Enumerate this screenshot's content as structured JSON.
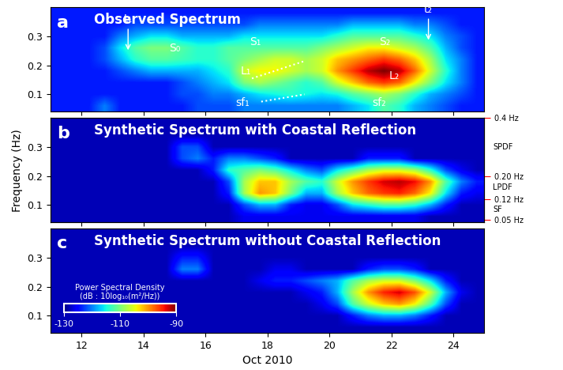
{
  "chart_data": [
    {
      "type": "heatmap",
      "label": "a",
      "title": "Observed Spectrum",
      "xlim": [
        11,
        25
      ],
      "ylim": [
        0.04,
        0.4
      ],
      "xticks": [
        12,
        14,
        16,
        18,
        20,
        22,
        24
      ],
      "yticks": [
        0.1,
        0.2,
        0.3
      ],
      "tick_labels": "y",
      "color_range": [
        -130,
        -90
      ],
      "cells": [
        [
          -124,
          -124,
          -124,
          -120,
          -124,
          -124,
          -124,
          -124,
          -124,
          -122,
          -122,
          -122,
          -120,
          -120,
          -120,
          -120,
          -120,
          -120,
          -120,
          -118,
          -116,
          -112,
          -114,
          -118,
          -120,
          -122,
          -124,
          -124
        ],
        [
          -124,
          -124,
          -124,
          -124,
          -124,
          -124,
          -124,
          -124,
          -122,
          -122,
          -120,
          -120,
          -118,
          -116,
          -115,
          -114,
          -115,
          -116,
          -115,
          -112,
          -110,
          -108,
          -110,
          -114,
          -118,
          -120,
          -122,
          -124
        ],
        [
          -124,
          -124,
          -124,
          -124,
          -124,
          -124,
          -124,
          -124,
          -122,
          -120,
          -118,
          -116,
          -110,
          -108,
          -110,
          -112,
          -114,
          -112,
          -106,
          -102,
          -98,
          -96,
          -98,
          -104,
          -110,
          -116,
          -120,
          -124
        ],
        [
          -124,
          -124,
          -124,
          -124,
          -122,
          -120,
          -118,
          -118,
          -118,
          -118,
          -116,
          -114,
          -106,
          -104,
          -104,
          -106,
          -108,
          -106,
          -100,
          -96,
          -92,
          -90,
          -92,
          -98,
          -106,
          -114,
          -120,
          -124
        ],
        [
          -124,
          -124,
          -124,
          -122,
          -118,
          -114,
          -112,
          -112,
          -113,
          -114,
          -114,
          -112,
          -110,
          -108,
          -106,
          -106,
          -108,
          -106,
          -102,
          -100,
          -98,
          -96,
          -98,
          -102,
          -108,
          -116,
          -120,
          -124
        ],
        [
          -124,
          -124,
          -124,
          -122,
          -116,
          -112,
          -110,
          -110,
          -112,
          -114,
          -114,
          -112,
          -112,
          -112,
          -112,
          -112,
          -112,
          -110,
          -108,
          -106,
          -104,
          -104,
          -106,
          -108,
          -112,
          -118,
          -122,
          -124
        ],
        [
          -124,
          -124,
          -124,
          -124,
          -120,
          -118,
          -116,
          -116,
          -118,
          -118,
          -118,
          -118,
          -116,
          -116,
          -116,
          -116,
          -116,
          -116,
          -114,
          -112,
          -112,
          -112,
          -112,
          -114,
          -116,
          -120,
          -122,
          -124
        ],
        [
          -124,
          -124,
          -124,
          -124,
          -124,
          -122,
          -122,
          -122,
          -122,
          -122,
          -122,
          -122,
          -122,
          -120,
          -120,
          -120,
          -120,
          -120,
          -120,
          -118,
          -118,
          -118,
          -118,
          -120,
          -120,
          -122,
          -124,
          -124
        ],
        [
          -124,
          -124,
          -124,
          -124,
          -124,
          -124,
          -124,
          -124,
          -124,
          -124,
          -124,
          -124,
          -124,
          -124,
          -124,
          -124,
          -124,
          -124,
          -124,
          -124,
          -124,
          -124,
          -124,
          -124,
          -124,
          -124,
          -124,
          -124
        ]
      ],
      "annotations": [
        {
          "text": "t₁",
          "x": 13.5,
          "y": 0.34,
          "xy": [
            13.5,
            0.245
          ]
        },
        {
          "text": "t₂",
          "x": 23.2,
          "y": 0.375,
          "xy": [
            23.2,
            0.28
          ]
        },
        {
          "text": "S₀",
          "x": 15.0,
          "y": 0.26
        },
        {
          "text": "S₁",
          "x": 17.6,
          "y": 0.28
        },
        {
          "text": "S₂",
          "x": 21.8,
          "y": 0.28
        },
        {
          "text": "L₁",
          "x": 17.3,
          "y": 0.18
        },
        {
          "text": "L₂",
          "x": 22.1,
          "y": 0.165
        },
        {
          "text": "sf₁",
          "x": 17.2,
          "y": 0.07
        },
        {
          "text": "sf₂",
          "x": 21.6,
          "y": 0.07
        }
      ],
      "lines": [
        {
          "x": [
            17.5,
            19.2
          ],
          "y": [
            0.155,
            0.215
          ]
        },
        {
          "x": [
            17.8,
            19.2
          ],
          "y": [
            0.075,
            0.1
          ]
        }
      ]
    },
    {
      "type": "heatmap",
      "label": "b",
      "title": "Synthetic Spectrum with Coastal Reflection",
      "xlim": [
        11,
        25
      ],
      "ylim": [
        0.04,
        0.4
      ],
      "xticks": [
        12,
        14,
        16,
        18,
        20,
        22,
        24
      ],
      "yticks": [
        0.1,
        0.2,
        0.3
      ],
      "ylabel": "Frequency (Hz)",
      "tick_labels": "y",
      "color_range": [
        -130,
        -90
      ],
      "y2ticks": [
        {
          "value": 0.4,
          "label": "0.4 Hz"
        },
        {
          "value": 0.2,
          "label": "0.20 Hz"
        },
        {
          "value": 0.12,
          "label": "0.12 Hz"
        },
        {
          "value": 0.05,
          "label": "0.05 Hz"
        }
      ],
      "side_labels": [
        {
          "text": "SPDF",
          "y": 0.3
        },
        {
          "text": "LPDF",
          "y": 0.16
        },
        {
          "text": "SF",
          "y": 0.085
        }
      ],
      "cells": [
        [
          -128,
          -128,
          -128,
          -128,
          -128,
          -128,
          -128,
          -128,
          -128,
          -128,
          -128,
          -128,
          -126,
          -126,
          -126,
          -126,
          -126,
          -126,
          -126,
          -126,
          -126,
          -126,
          -126,
          -126,
          -128,
          -128,
          -128,
          -128
        ],
        [
          -128,
          -128,
          -128,
          -128,
          -128,
          -128,
          -128,
          -128,
          -128,
          -128,
          -128,
          -128,
          -122,
          -118,
          -118,
          -124,
          -126,
          -126,
          -122,
          -116,
          -114,
          -112,
          -112,
          -114,
          -118,
          -124,
          -128,
          -128
        ],
        [
          -128,
          -128,
          -128,
          -128,
          -128,
          -128,
          -128,
          -128,
          -128,
          -128,
          -128,
          -124,
          -108,
          -100,
          -102,
          -110,
          -118,
          -118,
          -108,
          -102,
          -98,
          -96,
          -95,
          -98,
          -104,
          -116,
          -124,
          -126
        ],
        [
          -128,
          -128,
          -128,
          -128,
          -128,
          -128,
          -128,
          -128,
          -128,
          -128,
          -128,
          -122,
          -108,
          -102,
          -102,
          -108,
          -112,
          -114,
          -106,
          -100,
          -96,
          -93,
          -92,
          -94,
          -100,
          -112,
          -120,
          -124
        ],
        [
          -128,
          -128,
          -128,
          -128,
          -128,
          -128,
          -128,
          -128,
          -128,
          -128,
          -124,
          -114,
          -112,
          -110,
          -112,
          -116,
          -120,
          -122,
          -116,
          -112,
          -108,
          -106,
          -106,
          -108,
          -114,
          -122,
          -126,
          -128
        ],
        [
          -128,
          -128,
          -128,
          -128,
          -128,
          -128,
          -128,
          -128,
          -122,
          -120,
          -124,
          -120,
          -120,
          -122,
          -124,
          -128,
          -128,
          -128,
          -128,
          -128,
          -124,
          -124,
          -124,
          -128,
          -128,
          -128,
          -128,
          -128
        ],
        [
          -128,
          -128,
          -128,
          -128,
          -128,
          -128,
          -128,
          -128,
          -122,
          -122,
          -128,
          -128,
          -128,
          -128,
          -128,
          -128,
          -128,
          -128,
          -128,
          -128,
          -128,
          -128,
          -128,
          -128,
          -128,
          -128,
          -128,
          -128
        ],
        [
          -128,
          -128,
          -128,
          -128,
          -128,
          -128,
          -128,
          -128,
          -128,
          -128,
          -128,
          -128,
          -128,
          -128,
          -128,
          -128,
          -128,
          -128,
          -128,
          -128,
          -128,
          -128,
          -128,
          -128,
          -128,
          -128,
          -128,
          -128
        ],
        [
          -128,
          -128,
          -128,
          -128,
          -128,
          -128,
          -128,
          -128,
          -128,
          -128,
          -128,
          -128,
          -128,
          -128,
          -128,
          -128,
          -128,
          -128,
          -128,
          -128,
          -128,
          -128,
          -128,
          -128,
          -128,
          -128,
          -128,
          -128
        ]
      ]
    },
    {
      "type": "heatmap",
      "label": "c",
      "title": "Synthetic Spectrum without Coastal Reflection",
      "xlim": [
        11,
        25
      ],
      "ylim": [
        0.04,
        0.4
      ],
      "xticks": [
        12,
        14,
        16,
        18,
        20,
        22,
        24
      ],
      "yticks": [
        0.1,
        0.2,
        0.3
      ],
      "xlabel": "Oct 2010",
      "color_range": [
        -130,
        -90
      ],
      "colorbar": {
        "label": "Power Spectral Density\n(dB : 10log₁₀(m²/Hz))",
        "ticks": [
          -130,
          -110,
          -90
        ]
      },
      "cells": [
        [
          -128,
          -128,
          -128,
          -128,
          -128,
          -128,
          -128,
          -128,
          -128,
          -128,
          -128,
          -128,
          -128,
          -128,
          -128,
          -128,
          -128,
          -128,
          -128,
          -128,
          -128,
          -128,
          -128,
          -128,
          -128,
          -128,
          -128,
          -128
        ],
        [
          -128,
          -128,
          -128,
          -128,
          -128,
          -128,
          -128,
          -128,
          -128,
          -128,
          -128,
          -128,
          -128,
          -128,
          -128,
          -128,
          -128,
          -128,
          -128,
          -124,
          -120,
          -118,
          -118,
          -120,
          -124,
          -128,
          -128,
          -128
        ],
        [
          -128,
          -128,
          -128,
          -128,
          -128,
          -128,
          -128,
          -128,
          -128,
          -128,
          -128,
          -128,
          -128,
          -128,
          -128,
          -128,
          -128,
          -126,
          -122,
          -112,
          -106,
          -102,
          -100,
          -104,
          -112,
          -122,
          -128,
          -128
        ],
        [
          -128,
          -128,
          -128,
          -128,
          -128,
          -128,
          -128,
          -128,
          -128,
          -128,
          -128,
          -128,
          -128,
          -128,
          -128,
          -128,
          -126,
          -124,
          -118,
          -108,
          -100,
          -95,
          -93,
          -97,
          -106,
          -118,
          -126,
          -128
        ],
        [
          -128,
          -128,
          -128,
          -128,
          -128,
          -128,
          -128,
          -128,
          -128,
          -128,
          -128,
          -128,
          -128,
          -126,
          -124,
          -124,
          -122,
          -120,
          -118,
          -112,
          -108,
          -106,
          -106,
          -110,
          -116,
          -124,
          -128,
          -128
        ],
        [
          -128,
          -128,
          -128,
          -128,
          -128,
          -128,
          -128,
          -128,
          -120,
          -120,
          -128,
          -128,
          -128,
          -128,
          -126,
          -126,
          -128,
          -128,
          -128,
          -128,
          -124,
          -122,
          -122,
          -124,
          -128,
          -128,
          -128,
          -128
        ],
        [
          -128,
          -128,
          -128,
          -128,
          -128,
          -128,
          -128,
          -128,
          -124,
          -124,
          -128,
          -128,
          -128,
          -128,
          -128,
          -128,
          -128,
          -128,
          -128,
          -128,
          -128,
          -128,
          -128,
          -128,
          -128,
          -128,
          -128,
          -128
        ],
        [
          -128,
          -128,
          -128,
          -128,
          -128,
          -128,
          -128,
          -128,
          -128,
          -128,
          -128,
          -128,
          -128,
          -128,
          -128,
          -128,
          -128,
          -128,
          -128,
          -128,
          -128,
          -128,
          -128,
          -128,
          -128,
          -128,
          -128,
          -128
        ],
        [
          -128,
          -128,
          -128,
          -128,
          -128,
          -128,
          -128,
          -128,
          -128,
          -128,
          -128,
          -128,
          -128,
          -128,
          -128,
          -128,
          -128,
          -128,
          -128,
          -128,
          -128,
          -128,
          -128,
          -128,
          -128,
          -128,
          -128,
          -128
        ]
      ]
    }
  ]
}
